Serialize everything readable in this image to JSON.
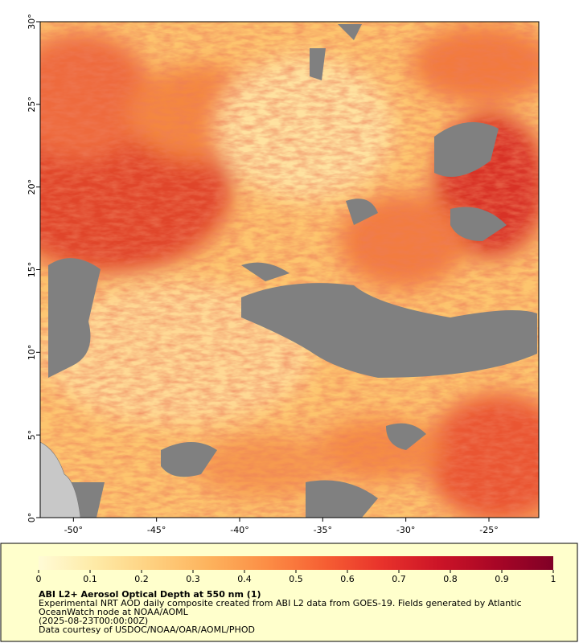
{
  "map": {
    "xlim": [
      -52,
      -22
    ],
    "ylim": [
      0,
      30
    ],
    "xticks": [
      {
        "value": -50,
        "label": "-50°"
      },
      {
        "value": -45,
        "label": "-45°"
      },
      {
        "value": -40,
        "label": "-40°"
      },
      {
        "value": -35,
        "label": "-35°"
      },
      {
        "value": -30,
        "label": "-30°"
      },
      {
        "value": -25,
        "label": "-25°"
      }
    ],
    "yticks": [
      {
        "value": 0,
        "label": "0°"
      },
      {
        "value": 5,
        "label": "5°"
      },
      {
        "value": 10,
        "label": "10°"
      },
      {
        "value": 15,
        "label": "15°"
      },
      {
        "value": 20,
        "label": "20°"
      },
      {
        "value": 25,
        "label": "25°"
      },
      {
        "value": 30,
        "label": "30°"
      }
    ]
  },
  "colorbar": {
    "range": [
      0,
      1
    ],
    "ticks": [
      0,
      0.1,
      0.2,
      0.3,
      0.4,
      0.5,
      0.6,
      0.7,
      0.8,
      0.9,
      1
    ],
    "colors": [
      "#fffbd6",
      "#feeaa6",
      "#fed07f",
      "#fdb25c",
      "#fc8d45",
      "#f65f33",
      "#e8322b",
      "#cc1427",
      "#a80626",
      "#800026"
    ]
  },
  "caption": {
    "title": "ABI L2+ Aerosol Optical Depth at 550 nm (1)",
    "description": [
      "Experimental NRT AOD daily composite created from ABI L2 data from GOES-19. Fields generated by Atlantic",
      "OceanWatch node at NOAA/AOML"
    ],
    "timestamp": "(2025-08-23T00:00:00Z)",
    "credit": "Data courtesy of USDOC/NOAA/OAR/AOML/PHOD"
  }
}
